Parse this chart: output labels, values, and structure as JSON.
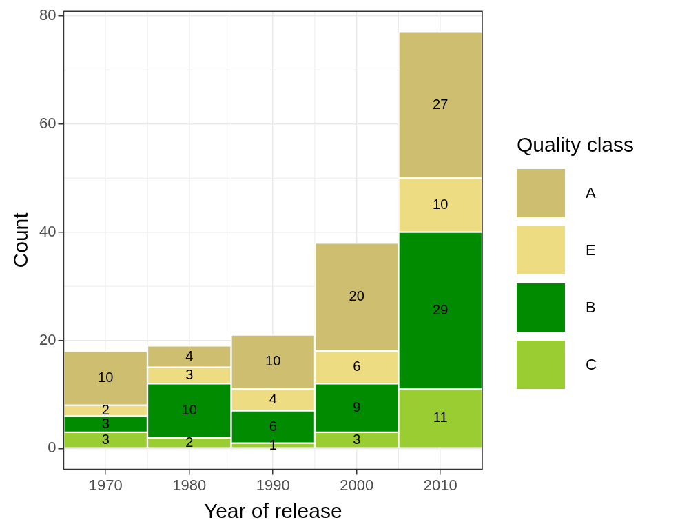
{
  "chart_data": {
    "type": "bar",
    "stacked": true,
    "xlabel": "Year of release",
    "ylabel": "Count",
    "legend_title": "Quality class",
    "legend": "right",
    "grid": true,
    "data_labels": true,
    "categories": [
      "1970",
      "1980",
      "1990",
      "2000",
      "2010"
    ],
    "ylim": [
      -3.85,
      80.85
    ],
    "yticks": [
      0,
      20,
      40,
      60,
      80
    ],
    "series": [
      {
        "name": "C",
        "color": "#9acd32",
        "values": [
          3,
          2,
          1,
          3,
          11
        ]
      },
      {
        "name": "B",
        "color": "#008b00",
        "values": [
          3,
          10,
          6,
          9,
          29
        ]
      },
      {
        "name": "E",
        "color": "#eedc82",
        "values": [
          2,
          3,
          4,
          6,
          10
        ]
      },
      {
        "name": "A",
        "color": "#cdbe70",
        "values": [
          10,
          4,
          10,
          20,
          27
        ]
      }
    ]
  }
}
